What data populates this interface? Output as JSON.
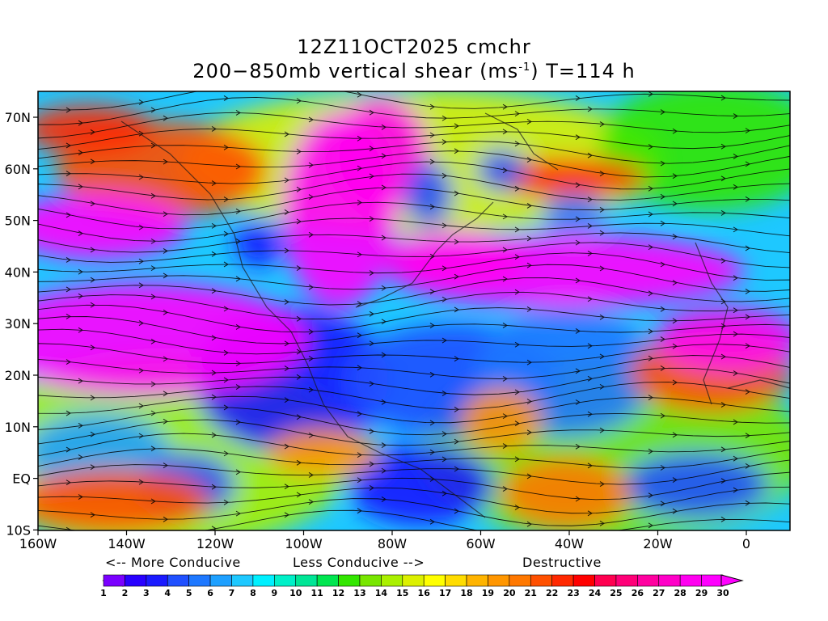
{
  "title": {
    "line1": "12Z11OCT2025 cmchr",
    "line2_prefix": "200−850mb vertical shear (ms",
    "line2_sup": "-1",
    "line2_suffix": ") T=114 h"
  },
  "axes": {
    "lat_labels": [
      "70N",
      "60N",
      "50N",
      "40N",
      "30N",
      "20N",
      "10N",
      "EQ",
      "10S"
    ],
    "lon_labels": [
      "160W",
      "140W",
      "120W",
      "100W",
      "80W",
      "60W",
      "40W",
      "20W",
      "0"
    ]
  },
  "conducive": {
    "more": "<-- More Conducive",
    "less": "Less Conducive -->",
    "destructive": "Destructive"
  },
  "colorbar": {
    "labels": [
      "1",
      "2",
      "3",
      "4",
      "5",
      "6",
      "7",
      "8",
      "9",
      "10",
      "11",
      "12",
      "13",
      "14",
      "15",
      "16",
      "17",
      "18",
      "19",
      "20",
      "21",
      "22",
      "23",
      "24",
      "25",
      "26",
      "27",
      "28",
      "29",
      "30"
    ],
    "colors": [
      "#ffffff",
      "#7a00ff",
      "#2800ff",
      "#1a1aff",
      "#2050ff",
      "#1e78ff",
      "#1ea0ff",
      "#1ec8ff",
      "#00f0ff",
      "#00f0c8",
      "#00e696",
      "#00e650",
      "#32e600",
      "#78e600",
      "#aaf000",
      "#dcf000",
      "#ffff00",
      "#ffdc00",
      "#ffb400",
      "#ff9600",
      "#ff7800",
      "#ff5000",
      "#ff2800",
      "#ff0000",
      "#ff0050",
      "#ff0078",
      "#ff00a0",
      "#ff00c8",
      "#ff00f0",
      "#ff00ff"
    ],
    "under_color": "#ffffff",
    "over_color": "#ff00ff"
  }
}
